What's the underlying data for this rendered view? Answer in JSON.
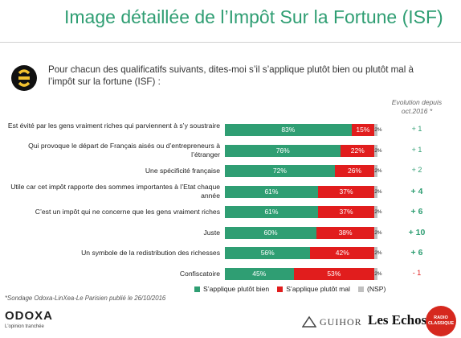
{
  "title": "Image détaillée de l’Impôt Sur la Fortune (ISF)",
  "question": "Pour chacun des qualificatifs suivants, dites-moi s’il s’applique plutôt bien ou plutôt mal à l’impôt sur la fortune (ISF) :",
  "evolution_header": "Evolution depuis oct.2016 *",
  "source": "*Sondage Odoxa-LinXea-Le Parisien publié le 26/10/2016",
  "brand": {
    "odoxa": "ODOXA",
    "odoxa_tagline": "L'opinion tranchée",
    "guihor": "GUIHOR",
    "lesechos": "Les Echos",
    "radio": "RADIO CLASSIQUE"
  },
  "colors": {
    "positive": "#2f9e73",
    "negative": "#e11d1d",
    "nsp": "#c0c0c0"
  },
  "chart_data": {
    "type": "bar",
    "orientation": "horizontal-stacked",
    "categories": [
      "Est évité par les gens vraiment riches qui parviennent à s’y soustraire",
      "Qui provoque le départ de Français aisés ou d’entrepreneurs à l’étranger",
      "Une spécificité française",
      "Utile car cet impôt rapporte des sommes importantes à l’Etat chaque année",
      "C’est un impôt qui ne concerne que les gens vraiment riches",
      "Juste",
      "Un symbole de la redistribution des richesses",
      "Confiscatoire"
    ],
    "series": [
      {
        "name": "S’applique plutôt bien",
        "values": [
          83,
          76,
          72,
          61,
          61,
          60,
          56,
          45
        ],
        "labels": [
          "83%",
          "76%",
          "72%",
          "61%",
          "61%",
          "60%",
          "56%",
          "45%"
        ]
      },
      {
        "name": "S’applique plutôt mal",
        "values": [
          15,
          22,
          26,
          37,
          37,
          38,
          42,
          53
        ],
        "labels": [
          "15%",
          "22%",
          "26%",
          "37%",
          "37%",
          "38%",
          "42%",
          "53%"
        ]
      },
      {
        "name": "(NSP)",
        "values": [
          2,
          2,
          2,
          2,
          2,
          2,
          2,
          2
        ],
        "labels": [
          "2%",
          "2%",
          "2%",
          "2%",
          "2%",
          "2%",
          "2%",
          "2%"
        ]
      }
    ],
    "evolution": [
      "+ 1",
      "+ 1",
      "+ 2",
      "+ 4",
      "+ 6",
      "+ 10",
      "+ 6",
      "- 1"
    ],
    "evolution_emphasis": [
      false,
      false,
      false,
      true,
      true,
      true,
      true,
      false
    ],
    "evolution_negative": [
      false,
      false,
      false,
      false,
      false,
      false,
      false,
      true
    ],
    "legend_position": "bottom"
  }
}
